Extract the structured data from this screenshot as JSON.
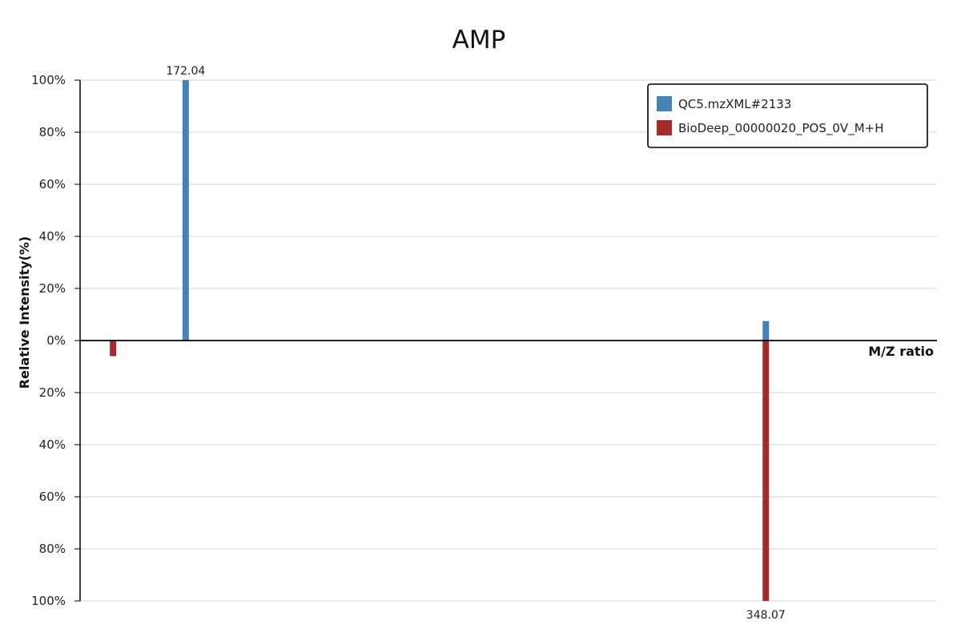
{
  "chart_data": {
    "type": "bar",
    "title": "AMP",
    "xlabel": "M/Z ratio",
    "ylabel": "Relative Intensity(%)",
    "grid": true,
    "legend_position": "top-right",
    "yticks_upper": [
      "100%",
      "80%",
      "60%",
      "40%",
      "20%",
      "0%"
    ],
    "yticks_lower": [
      "20%",
      "40%",
      "60%",
      "80%",
      "100%"
    ],
    "ylim": [
      -100,
      100
    ],
    "xlim": [
      140,
      400
    ],
    "series": [
      {
        "name": "QC5.mzXML#2133",
        "color": "#4682b4",
        "direction": "up",
        "peaks": [
          {
            "mz": 172.04,
            "intensity": 100,
            "label": "172.04"
          },
          {
            "mz": 348.07,
            "intensity": 7.5,
            "label": ""
          }
        ]
      },
      {
        "name": "BioDeep_00000020_POS_0V_M+H",
        "color": "#a52a2a",
        "direction": "down",
        "peaks": [
          {
            "mz": 150.0,
            "intensity": 6,
            "label": ""
          },
          {
            "mz": 348.07,
            "intensity": 100,
            "label": "348.07"
          }
        ]
      }
    ]
  }
}
